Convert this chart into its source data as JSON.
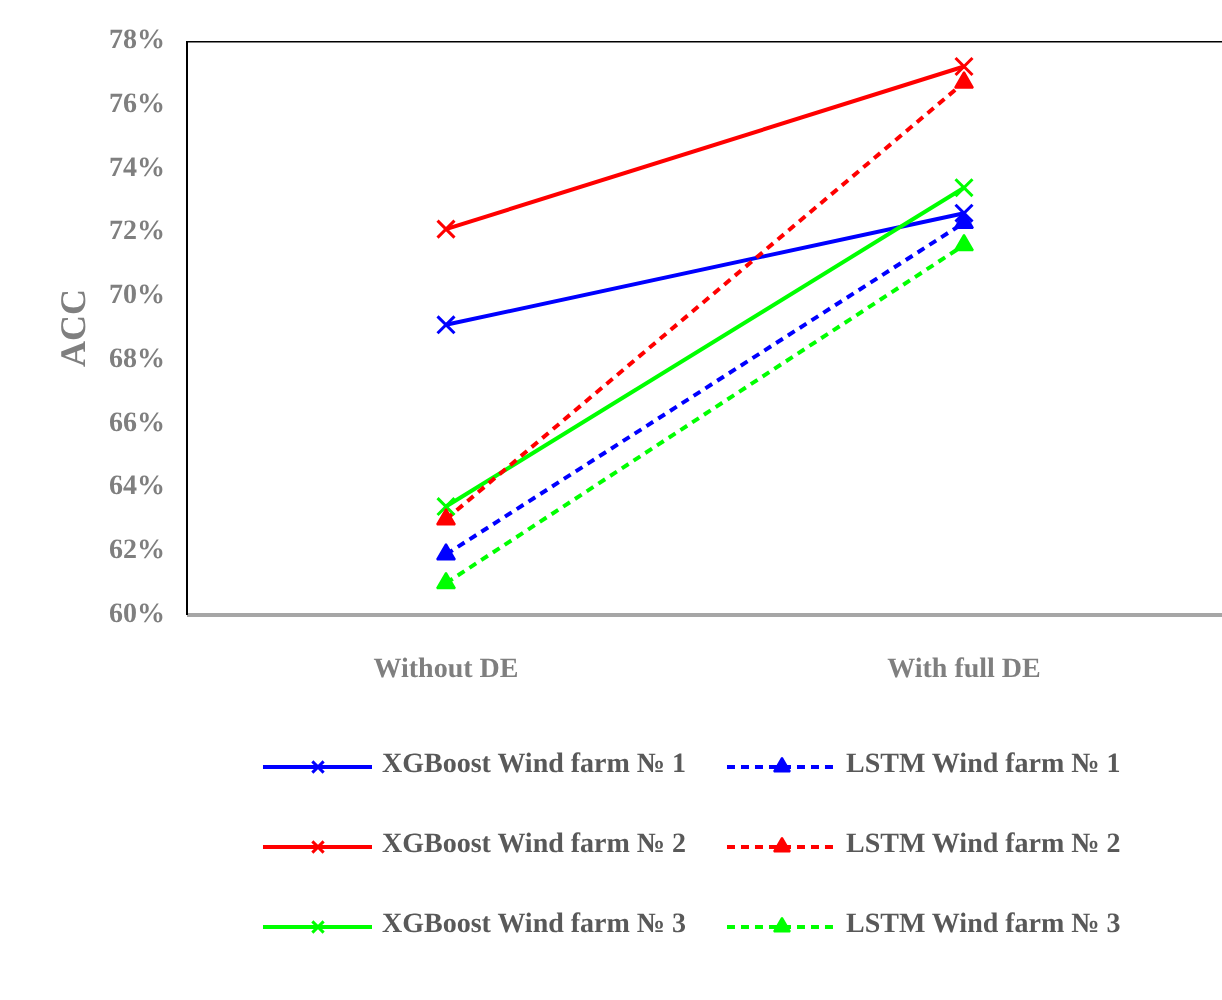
{
  "chart_data": {
    "type": "line",
    "ylabel": "ACC",
    "categories": [
      "Without DE",
      "With full DE"
    ],
    "ylim": [
      60,
      78
    ],
    "yticks": [
      {
        "value": 60,
        "label": "60%"
      },
      {
        "value": 62,
        "label": "62%"
      },
      {
        "value": 64,
        "label": "64%"
      },
      {
        "value": 66,
        "label": "66%"
      },
      {
        "value": 68,
        "label": "68%"
      },
      {
        "value": 70,
        "label": "70%"
      },
      {
        "value": 72,
        "label": "72%"
      },
      {
        "value": 74,
        "label": "74%"
      },
      {
        "value": 76,
        "label": "76%"
      },
      {
        "value": 78,
        "label": "78%"
      }
    ],
    "grid": false,
    "legend": "bottom",
    "series": [
      {
        "name": "XGBoost Wind farm № 1",
        "color": "#0000ff",
        "values": [
          69.1,
          72.6
        ],
        "marker": "cross",
        "line_style": "solid"
      },
      {
        "name": "XGBoost Wind farm № 2",
        "color": "#ff0000",
        "values": [
          72.1,
          77.2
        ],
        "marker": "cross",
        "line_style": "solid"
      },
      {
        "name": "XGBoost Wind farm № 3",
        "color": "#00ff00",
        "values": [
          63.4,
          73.4
        ],
        "marker": "cross",
        "line_style": "solid"
      },
      {
        "name": "LSTM Wind farm № 1",
        "color": "#0000ff",
        "values": [
          61.9,
          72.3
        ],
        "marker": "triangle",
        "line_style": "dashed"
      },
      {
        "name": "LSTM Wind farm № 2",
        "color": "#ff0000",
        "values": [
          63.0,
          76.7
        ],
        "marker": "triangle",
        "line_style": "dashed"
      },
      {
        "name": "LSTM Wind farm № 3",
        "color": "#00ff00",
        "values": [
          61.0,
          71.6
        ],
        "marker": "triangle",
        "line_style": "dashed"
      }
    ]
  }
}
